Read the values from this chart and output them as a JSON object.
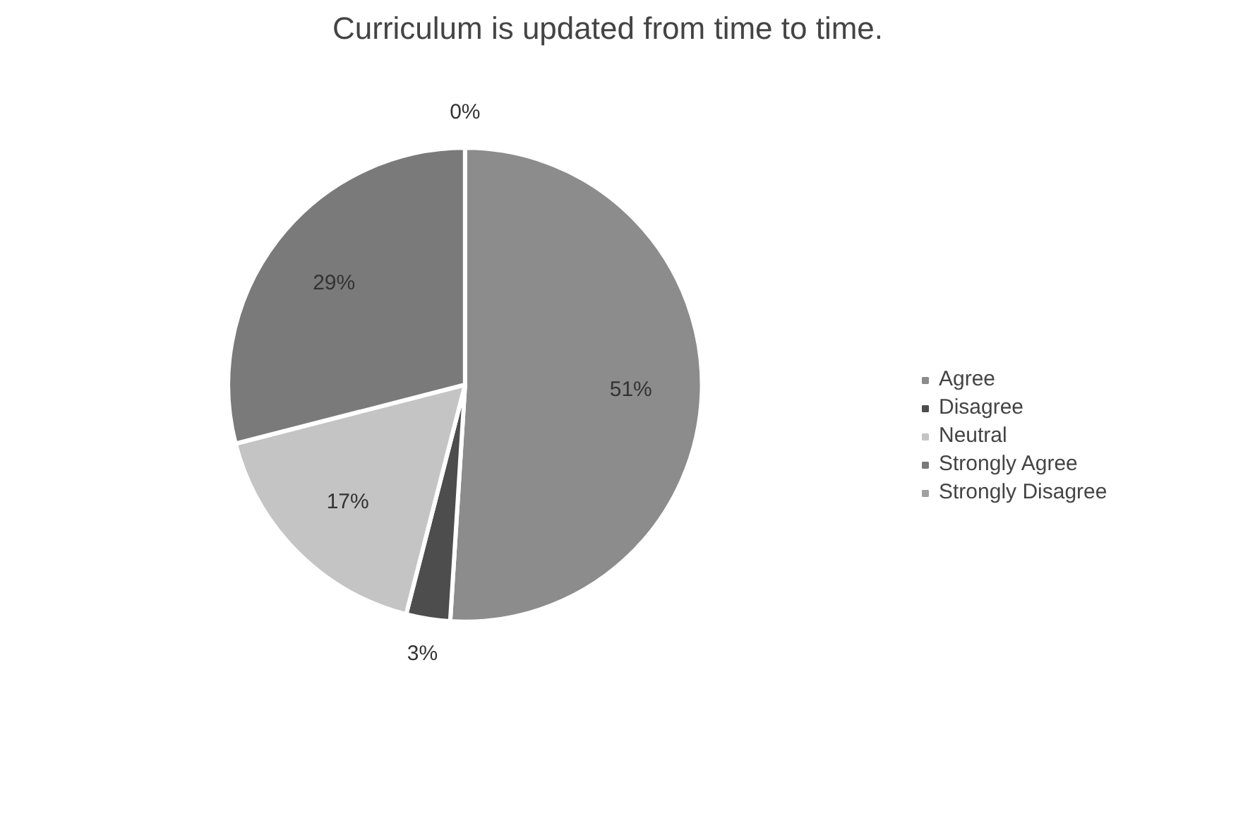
{
  "chart_data": {
    "type": "pie",
    "title": "Curriculum is updated from time to time.",
    "categories": [
      "Agree",
      "Disagree",
      "Neutral",
      "Strongly Agree",
      "Strongly Disagree"
    ],
    "values": [
      51,
      3,
      17,
      29,
      0
    ],
    "colors": [
      "#8c8c8c",
      "#4d4d4d",
      "#c4c4c4",
      "#7a7a7a",
      "#a0a0a0"
    ],
    "value_labels": [
      "51%",
      "3%",
      "17%",
      "29%",
      "0%"
    ],
    "legend": "right"
  }
}
